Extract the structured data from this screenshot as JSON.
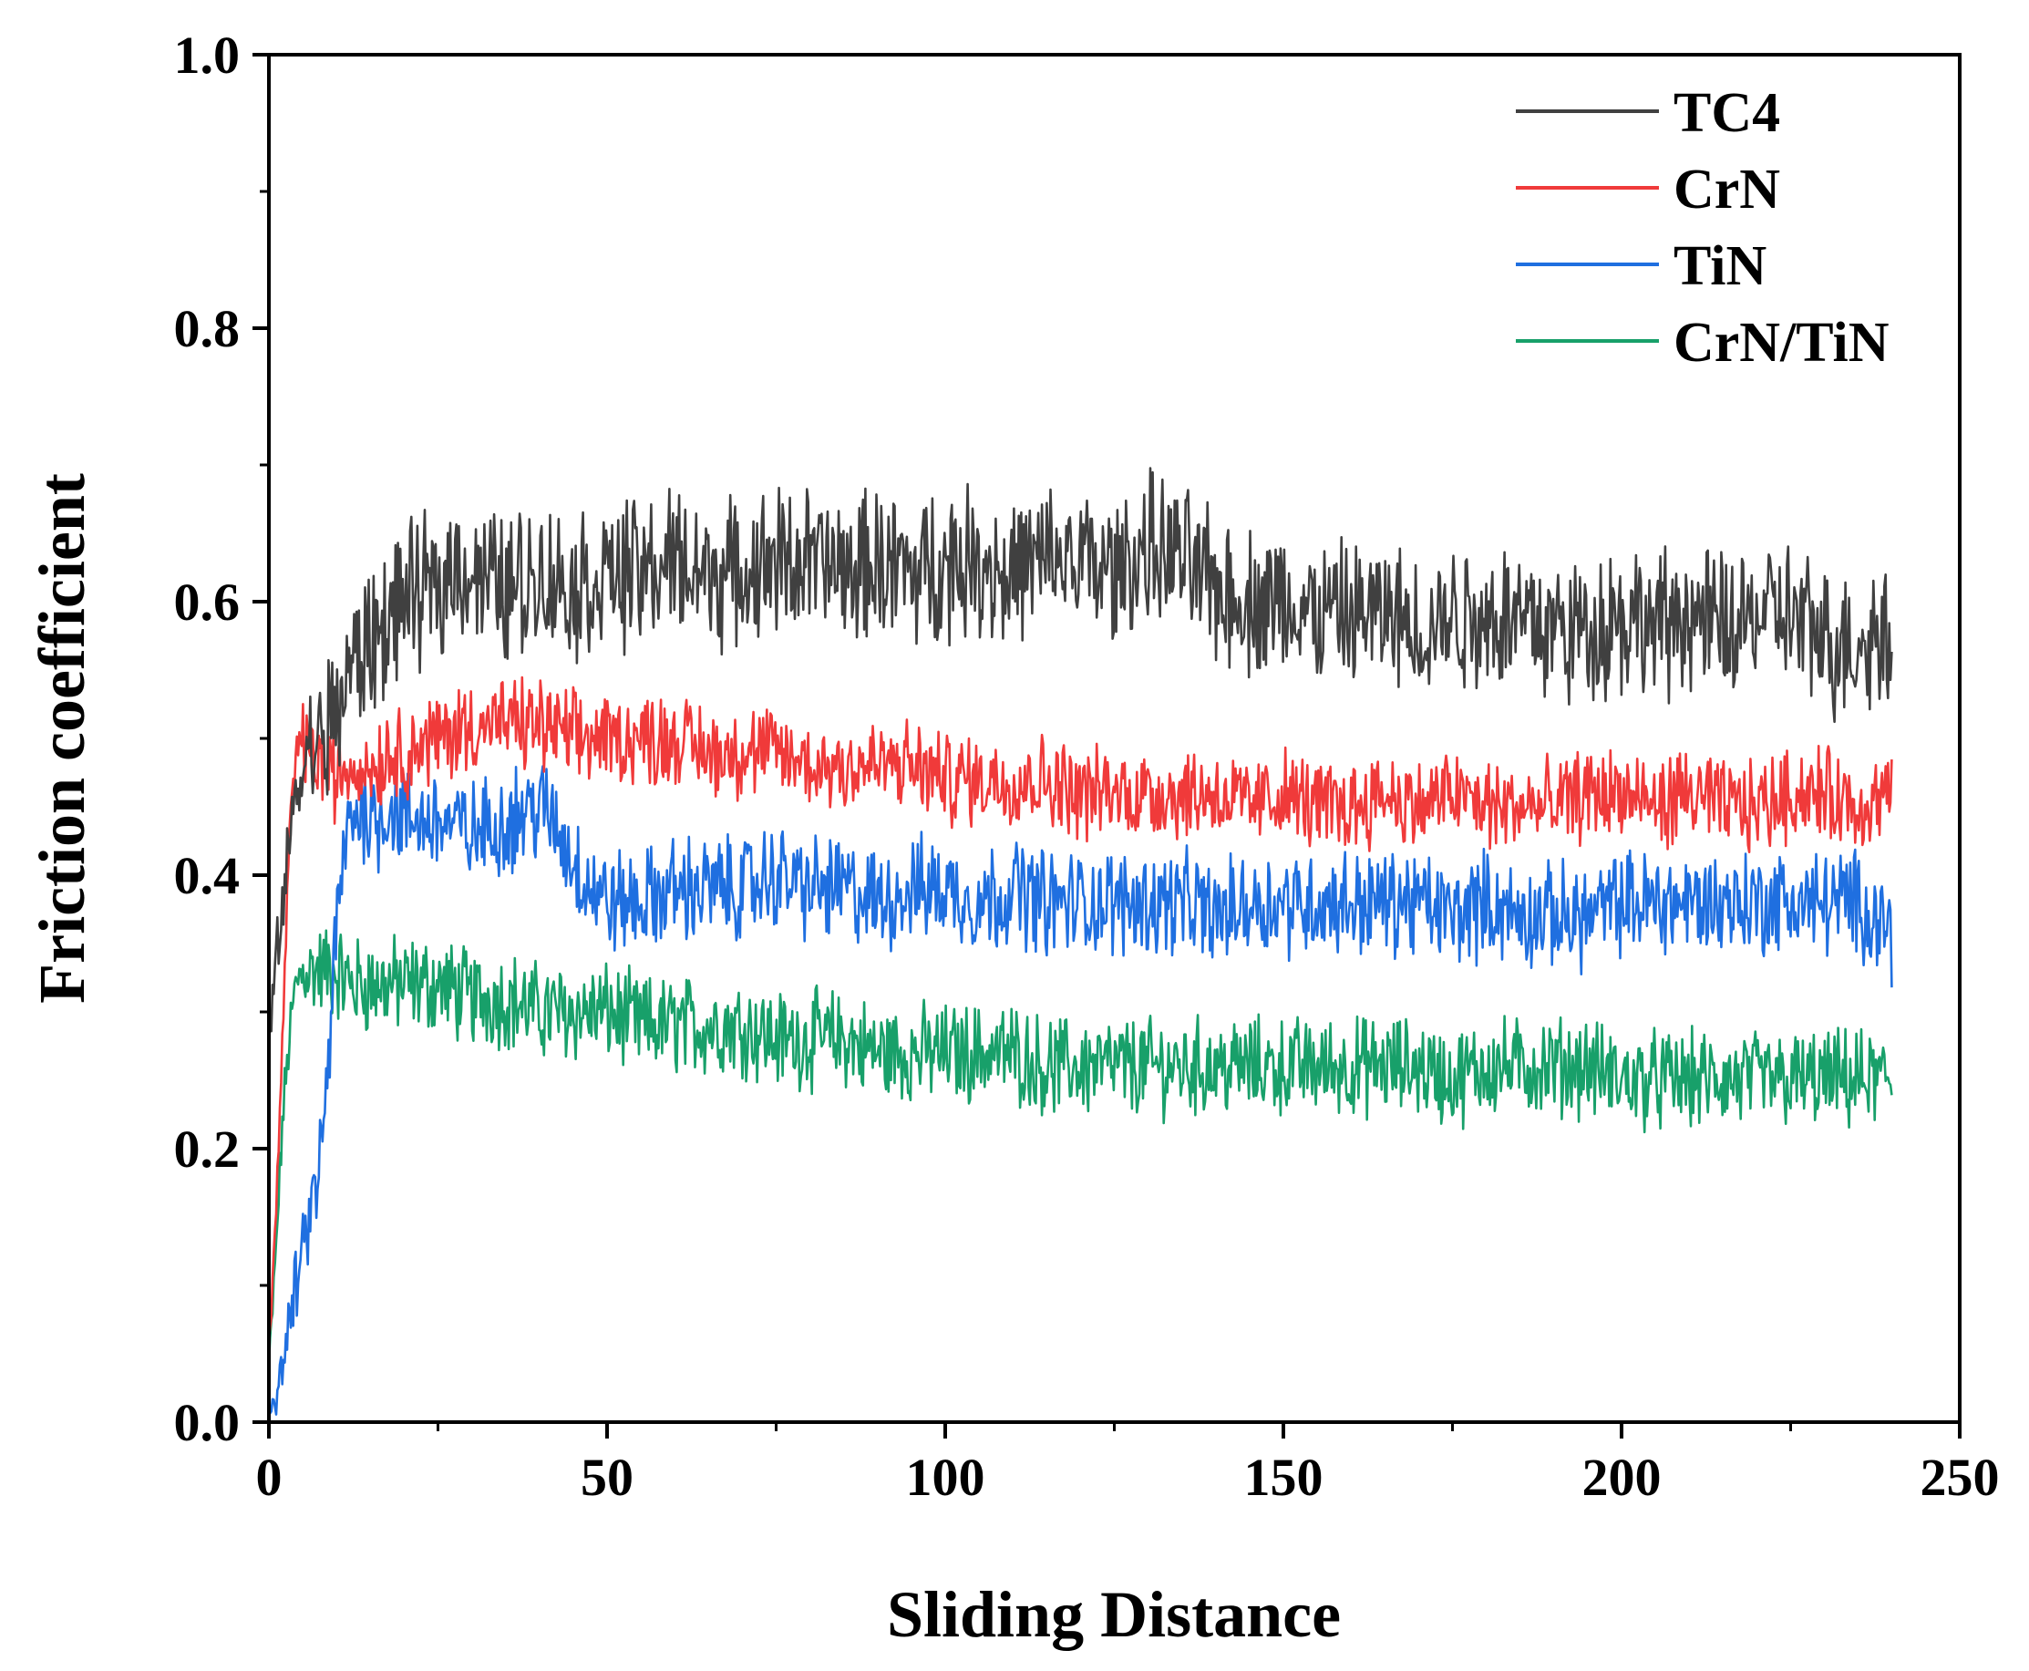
{
  "chart_data": {
    "type": "line",
    "title": "",
    "xlabel": "Sliding Distance",
    "ylabel": "Friction coefficient",
    "xlim": [
      0,
      250
    ],
    "ylim": [
      0,
      1.0
    ],
    "xticks": [
      0,
      50,
      100,
      150,
      200,
      250
    ],
    "yticks": [
      0.0,
      0.2,
      0.4,
      0.6,
      0.8,
      1.0
    ],
    "xtick_labels": [
      "0",
      "50",
      "100",
      "150",
      "200",
      "250"
    ],
    "ytick_labels": [
      "0.0",
      "0.2",
      "0.4",
      "0.6",
      "0.8",
      "1.0"
    ],
    "grid": false,
    "legend_position": "top-right",
    "series": [
      {
        "name": "TC4",
        "color": "#404040",
        "x": [
          0,
          1,
          2,
          3,
          4,
          5,
          6,
          8,
          10,
          12,
          15,
          18,
          20,
          25,
          28,
          30,
          35,
          40,
          45,
          50,
          55,
          60,
          65,
          70,
          75,
          80,
          85,
          90,
          95,
          100,
          105,
          110,
          115,
          120,
          125,
          130,
          135,
          140,
          145,
          150,
          155,
          160,
          165,
          170,
          175,
          180,
          185,
          190,
          195,
          200,
          205,
          210,
          215,
          220,
          225,
          230,
          235,
          240
        ],
        "values": [
          0.28,
          0.33,
          0.38,
          0.42,
          0.46,
          0.48,
          0.49,
          0.5,
          0.52,
          0.55,
          0.57,
          0.59,
          0.6,
          0.61,
          0.63,
          0.62,
          0.61,
          0.62,
          0.61,
          0.62,
          0.62,
          0.63,
          0.62,
          0.62,
          0.63,
          0.63,
          0.62,
          0.63,
          0.62,
          0.63,
          0.63,
          0.62,
          0.63,
          0.63,
          0.62,
          0.64,
          0.63,
          0.61,
          0.6,
          0.6,
          0.59,
          0.59,
          0.59,
          0.58,
          0.59,
          0.59,
          0.59,
          0.58,
          0.58,
          0.59,
          0.58,
          0.59,
          0.58,
          0.59,
          0.59,
          0.57,
          0.57,
          0.58
        ],
        "noise": 0.045
      },
      {
        "name": "CrN",
        "color": "#f03a3a",
        "x": [
          0,
          1,
          2,
          3,
          4,
          5,
          6,
          8,
          10,
          12,
          15,
          18,
          20,
          25,
          30,
          35,
          40,
          45,
          50,
          55,
          60,
          65,
          70,
          75,
          80,
          85,
          90,
          95,
          100,
          105,
          110,
          115,
          120,
          125,
          130,
          135,
          140,
          145,
          150,
          155,
          160,
          165,
          170,
          175,
          180,
          185,
          190,
          195,
          200,
          205,
          210,
          215,
          220,
          225,
          230,
          235,
          240
        ],
        "values": [
          0.06,
          0.14,
          0.28,
          0.42,
          0.49,
          0.5,
          0.49,
          0.48,
          0.47,
          0.48,
          0.48,
          0.49,
          0.49,
          0.5,
          0.51,
          0.51,
          0.51,
          0.5,
          0.5,
          0.5,
          0.5,
          0.49,
          0.49,
          0.49,
          0.48,
          0.48,
          0.48,
          0.48,
          0.47,
          0.47,
          0.47,
          0.47,
          0.46,
          0.46,
          0.46,
          0.46,
          0.46,
          0.45,
          0.46,
          0.45,
          0.45,
          0.46,
          0.45,
          0.46,
          0.45,
          0.45,
          0.45,
          0.46,
          0.46,
          0.45,
          0.46,
          0.45,
          0.45,
          0.46,
          0.46,
          0.45,
          0.46
        ],
        "noise": 0.028
      },
      {
        "name": "TiN",
        "color": "#1f6fe0",
        "x": [
          0,
          1,
          2,
          3,
          4,
          5,
          6,
          7,
          8,
          9,
          10,
          11,
          12,
          14,
          16,
          18,
          20,
          25,
          30,
          35,
          40,
          42,
          45,
          48,
          50,
          55,
          60,
          65,
          70,
          75,
          80,
          85,
          90,
          95,
          100,
          105,
          110,
          115,
          120,
          125,
          130,
          135,
          140,
          145,
          150,
          155,
          160,
          165,
          170,
          175,
          180,
          185,
          190,
          195,
          200,
          205,
          210,
          215,
          220,
          225,
          230,
          235,
          240
        ],
        "values": [
          0.01,
          0.02,
          0.04,
          0.07,
          0.1,
          0.12,
          0.15,
          0.17,
          0.21,
          0.28,
          0.36,
          0.41,
          0.44,
          0.45,
          0.44,
          0.45,
          0.44,
          0.44,
          0.43,
          0.44,
          0.45,
          0.44,
          0.41,
          0.39,
          0.38,
          0.38,
          0.39,
          0.39,
          0.39,
          0.4,
          0.39,
          0.39,
          0.38,
          0.39,
          0.39,
          0.38,
          0.39,
          0.38,
          0.38,
          0.38,
          0.38,
          0.38,
          0.37,
          0.38,
          0.38,
          0.38,
          0.38,
          0.38,
          0.38,
          0.37,
          0.38,
          0.37,
          0.37,
          0.37,
          0.38,
          0.38,
          0.38,
          0.38,
          0.38,
          0.38,
          0.38,
          0.38,
          0.36
        ],
        "noise": 0.032
      },
      {
        "name": "CrN/TiN",
        "color": "#18a06a",
        "x": [
          0,
          1,
          2,
          3,
          4,
          5,
          6,
          8,
          10,
          12,
          15,
          20,
          25,
          30,
          35,
          40,
          45,
          50,
          55,
          60,
          65,
          70,
          75,
          80,
          85,
          90,
          95,
          100,
          105,
          110,
          115,
          120,
          125,
          130,
          135,
          140,
          145,
          150,
          155,
          160,
          165,
          170,
          175,
          180,
          185,
          190,
          195,
          200,
          205,
          210,
          215,
          220,
          225,
          230,
          235,
          240
        ],
        "values": [
          0.04,
          0.12,
          0.22,
          0.28,
          0.32,
          0.33,
          0.33,
          0.33,
          0.33,
          0.32,
          0.32,
          0.32,
          0.32,
          0.31,
          0.31,
          0.3,
          0.3,
          0.3,
          0.29,
          0.29,
          0.29,
          0.29,
          0.28,
          0.28,
          0.28,
          0.27,
          0.27,
          0.27,
          0.27,
          0.27,
          0.26,
          0.26,
          0.26,
          0.26,
          0.26,
          0.26,
          0.26,
          0.26,
          0.26,
          0.26,
          0.26,
          0.26,
          0.25,
          0.26,
          0.26,
          0.26,
          0.26,
          0.25,
          0.25,
          0.25,
          0.25,
          0.25,
          0.25,
          0.25,
          0.25,
          0.25
        ],
        "noise": 0.03
      }
    ]
  }
}
